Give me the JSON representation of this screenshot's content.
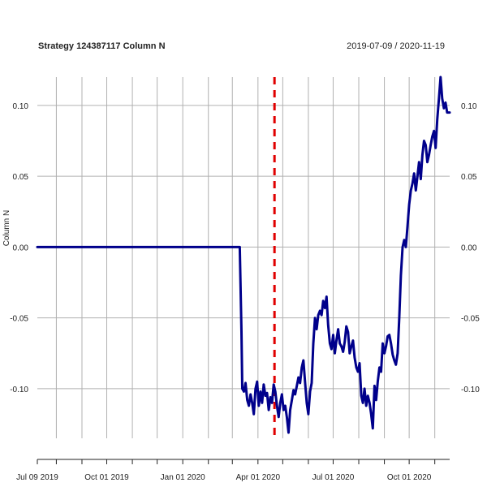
{
  "chart_data": {
    "type": "line",
    "title": "Strategy 124387117 Column N",
    "date_range": "2019-07-09 / 2020-11-19",
    "ylabel": "Column N",
    "xlim": [
      "2019-07-09",
      "2020-11-19"
    ],
    "ylim": [
      -0.135,
      0.12
    ],
    "y_ticks": [
      -0.1,
      -0.05,
      0.0,
      0.05,
      0.1
    ],
    "y_tick_labels": [
      "-0.10",
      "-0.05",
      "0.00",
      "0.05",
      "0.10"
    ],
    "x_tick_labels": [
      {
        "date": "2019-07-09",
        "label": "Jul 09 2019"
      },
      {
        "date": "2019-10-01",
        "label": "Oct 01 2019"
      },
      {
        "date": "2020-01-01",
        "label": "Jan 01 2020"
      },
      {
        "date": "2020-04-01",
        "label": "Apr 01 2020"
      },
      {
        "date": "2020-07-01",
        "label": "Jul 01 2020"
      },
      {
        "date": "2020-10-01",
        "label": "Oct 01 2020"
      }
    ],
    "grid": true,
    "marker_date": "2020-04-21",
    "series": [
      {
        "color": "#00008b",
        "x": [
          "2019-07-09",
          "2020-03-10",
          "2020-03-12",
          "2020-03-13",
          "2020-03-15",
          "2020-03-17",
          "2020-03-19",
          "2020-03-21",
          "2020-03-23",
          "2020-03-25",
          "2020-03-27",
          "2020-03-29",
          "2020-03-31",
          "2020-04-02",
          "2020-04-04",
          "2020-04-06",
          "2020-04-08",
          "2020-04-10",
          "2020-04-12",
          "2020-04-14",
          "2020-04-16",
          "2020-04-18",
          "2020-04-20",
          "2020-04-22",
          "2020-04-24",
          "2020-04-26",
          "2020-04-28",
          "2020-04-30",
          "2020-05-02",
          "2020-05-04",
          "2020-05-06",
          "2020-05-08",
          "2020-05-10",
          "2020-05-12",
          "2020-05-14",
          "2020-05-16",
          "2020-05-18",
          "2020-05-20",
          "2020-05-22",
          "2020-05-24",
          "2020-05-26",
          "2020-05-28",
          "2020-05-30",
          "2020-06-01",
          "2020-06-03",
          "2020-06-05",
          "2020-06-07",
          "2020-06-09",
          "2020-06-11",
          "2020-06-13",
          "2020-06-15",
          "2020-06-17",
          "2020-06-19",
          "2020-06-21",
          "2020-06-23",
          "2020-06-25",
          "2020-06-27",
          "2020-06-29",
          "2020-07-01",
          "2020-07-03",
          "2020-07-05",
          "2020-07-07",
          "2020-07-09",
          "2020-07-11",
          "2020-07-13",
          "2020-07-15",
          "2020-07-17",
          "2020-07-19",
          "2020-07-21",
          "2020-07-23",
          "2020-07-25",
          "2020-07-27",
          "2020-07-29",
          "2020-07-31",
          "2020-08-02",
          "2020-08-04",
          "2020-08-06",
          "2020-08-08",
          "2020-08-10",
          "2020-08-12",
          "2020-08-14",
          "2020-08-16",
          "2020-08-18",
          "2020-08-20",
          "2020-08-22",
          "2020-08-24",
          "2020-08-26",
          "2020-08-28",
          "2020-08-30",
          "2020-09-01",
          "2020-09-03",
          "2020-09-05",
          "2020-09-07",
          "2020-09-09",
          "2020-09-11",
          "2020-09-13",
          "2020-09-15",
          "2020-09-17",
          "2020-09-19",
          "2020-09-21",
          "2020-09-23",
          "2020-09-25",
          "2020-09-27",
          "2020-09-29",
          "2020-10-01",
          "2020-10-03",
          "2020-10-05",
          "2020-10-07",
          "2020-10-09",
          "2020-10-11",
          "2020-10-13",
          "2020-10-15",
          "2020-10-17",
          "2020-10-19",
          "2020-10-21",
          "2020-10-23",
          "2020-10-25",
          "2020-10-27",
          "2020-10-29",
          "2020-10-31",
          "2020-11-02",
          "2020-11-04",
          "2020-11-06",
          "2020-11-08",
          "2020-11-10",
          "2020-11-12",
          "2020-11-14",
          "2020-11-16",
          "2020-11-19"
        ],
        "y": [
          0.0,
          0.0,
          -0.06,
          -0.1,
          -0.102,
          -0.096,
          -0.108,
          -0.112,
          -0.104,
          -0.11,
          -0.118,
          -0.1,
          -0.095,
          -0.112,
          -0.102,
          -0.11,
          -0.097,
          -0.105,
          -0.103,
          -0.115,
          -0.106,
          -0.11,
          -0.097,
          -0.102,
          -0.112,
          -0.12,
          -0.11,
          -0.104,
          -0.115,
          -0.112,
          -0.12,
          -0.131,
          -0.115,
          -0.108,
          -0.101,
          -0.104,
          -0.098,
          -0.092,
          -0.096,
          -0.085,
          -0.08,
          -0.095,
          -0.11,
          -0.118,
          -0.102,
          -0.096,
          -0.068,
          -0.05,
          -0.058,
          -0.048,
          -0.045,
          -0.048,
          -0.038,
          -0.043,
          -0.035,
          -0.055,
          -0.068,
          -0.072,
          -0.062,
          -0.075,
          -0.066,
          -0.058,
          -0.068,
          -0.07,
          -0.074,
          -0.067,
          -0.056,
          -0.06,
          -0.075,
          -0.07,
          -0.066,
          -0.078,
          -0.085,
          -0.088,
          -0.082,
          -0.105,
          -0.11,
          -0.1,
          -0.112,
          -0.105,
          -0.11,
          -0.118,
          -0.128,
          -0.098,
          -0.108,
          -0.095,
          -0.085,
          -0.088,
          -0.068,
          -0.075,
          -0.07,
          -0.063,
          -0.062,
          -0.068,
          -0.076,
          -0.08,
          -0.083,
          -0.075,
          -0.05,
          -0.02,
          0.0,
          0.005,
          0.0,
          0.015,
          0.03,
          0.04,
          0.045,
          0.052,
          0.04,
          0.05,
          0.06,
          0.048,
          0.065,
          0.075,
          0.072,
          0.06,
          0.065,
          0.072,
          0.078,
          0.082,
          0.07,
          0.09,
          0.105,
          0.12,
          0.105,
          0.098,
          0.102,
          0.095,
          0.095
        ]
      }
    ]
  }
}
